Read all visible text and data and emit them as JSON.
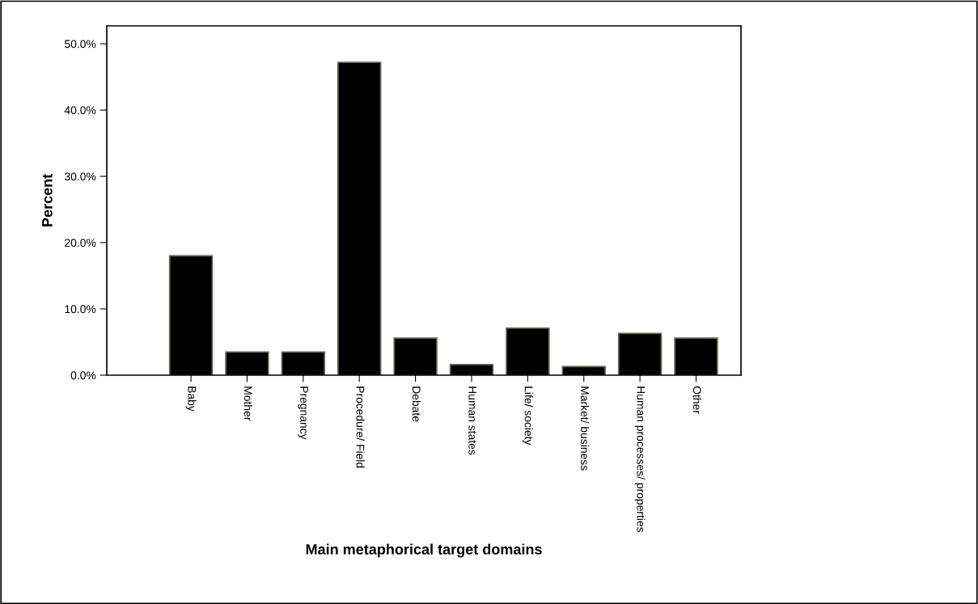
{
  "chart_data": {
    "type": "bar",
    "xlabel": "Main metaphorical target domains",
    "ylabel": "Percent",
    "categories": [
      "Baby",
      "Mother",
      "Pregnancy",
      "Procedure/ Field",
      "Debate",
      "Human states",
      "Life/ society",
      "Market/ business",
      "Human processes/ properties",
      "Other"
    ],
    "values": [
      18.0,
      3.5,
      3.5,
      47.2,
      5.6,
      1.6,
      7.1,
      1.3,
      6.3,
      5.6
    ],
    "color": "#000000",
    "ylim": [
      0,
      52.7
    ],
    "yticks": [
      {
        "value": 0,
        "label": "0.0%"
      },
      {
        "value": 10,
        "label": "10.0%"
      },
      {
        "value": 20,
        "label": "20.0%"
      },
      {
        "value": 30,
        "label": "30.0%"
      },
      {
        "value": 40,
        "label": "40.0%"
      },
      {
        "value": 50,
        "label": "50.0%"
      }
    ],
    "grid": false
  }
}
